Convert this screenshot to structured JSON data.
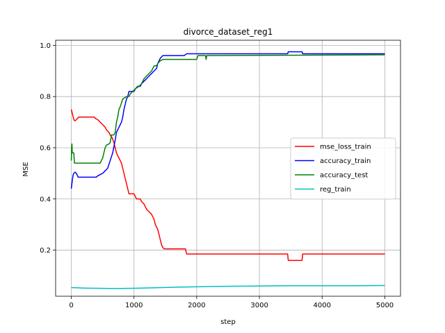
{
  "chart_data": {
    "type": "line",
    "title": "divorce_dataset_reg1",
    "xlabel": "step",
    "ylabel": "MSE",
    "xlim": [
      -250,
      5250
    ],
    "ylim": [
      0.02,
      1.02
    ],
    "xticks": [
      0,
      1000,
      2000,
      3000,
      4000,
      5000
    ],
    "yticks": [
      0.2,
      0.4,
      0.6,
      0.8,
      1.0
    ],
    "xtick_labels": [
      "0",
      "1000",
      "2000",
      "3000",
      "4000",
      "5000"
    ],
    "ytick_labels": [
      "0.2",
      "0.4",
      "0.6",
      "0.8",
      "1.0"
    ],
    "grid": true,
    "legend_position": "center-right",
    "series": [
      {
        "name": "mse_loss_train",
        "color": "#ff0000",
        "points": [
          [
            0,
            0.75
          ],
          [
            10,
            0.74
          ],
          [
            20,
            0.73
          ],
          [
            40,
            0.71
          ],
          [
            60,
            0.705
          ],
          [
            80,
            0.71
          ],
          [
            100,
            0.715
          ],
          [
            120,
            0.72
          ],
          [
            200,
            0.72
          ],
          [
            300,
            0.72
          ],
          [
            370,
            0.72
          ],
          [
            380,
            0.715
          ],
          [
            420,
            0.71
          ],
          [
            460,
            0.7
          ],
          [
            500,
            0.69
          ],
          [
            540,
            0.68
          ],
          [
            560,
            0.67
          ],
          [
            600,
            0.66
          ],
          [
            620,
            0.65
          ],
          [
            650,
            0.64
          ],
          [
            680,
            0.62
          ],
          [
            700,
            0.6
          ],
          [
            720,
            0.58
          ],
          [
            740,
            0.57
          ],
          [
            760,
            0.56
          ],
          [
            780,
            0.55
          ],
          [
            800,
            0.54
          ],
          [
            820,
            0.52
          ],
          [
            840,
            0.5
          ],
          [
            860,
            0.48
          ],
          [
            880,
            0.46
          ],
          [
            900,
            0.44
          ],
          [
            920,
            0.42
          ],
          [
            1000,
            0.42
          ],
          [
            1020,
            0.41
          ],
          [
            1040,
            0.4
          ],
          [
            1100,
            0.4
          ],
          [
            1120,
            0.39
          ],
          [
            1160,
            0.38
          ],
          [
            1200,
            0.36
          ],
          [
            1240,
            0.35
          ],
          [
            1280,
            0.34
          ],
          [
            1320,
            0.32
          ],
          [
            1340,
            0.3
          ],
          [
            1360,
            0.29
          ],
          [
            1380,
            0.28
          ],
          [
            1400,
            0.26
          ],
          [
            1410,
            0.25
          ],
          [
            1420,
            0.24
          ],
          [
            1430,
            0.23
          ],
          [
            1440,
            0.22
          ],
          [
            1460,
            0.21
          ],
          [
            1480,
            0.205
          ],
          [
            1820,
            0.205
          ],
          [
            1840,
            0.185
          ],
          [
            3450,
            0.185
          ],
          [
            3460,
            0.16
          ],
          [
            3680,
            0.16
          ],
          [
            3690,
            0.185
          ],
          [
            5000,
            0.185
          ]
        ]
      },
      {
        "name": "accuracy_train",
        "color": "#0000ff",
        "points": [
          [
            0,
            0.44
          ],
          [
            10,
            0.46
          ],
          [
            20,
            0.48
          ],
          [
            30,
            0.495
          ],
          [
            40,
            0.5
          ],
          [
            60,
            0.505
          ],
          [
            80,
            0.5
          ],
          [
            100,
            0.49
          ],
          [
            110,
            0.485
          ],
          [
            200,
            0.485
          ],
          [
            300,
            0.485
          ],
          [
            400,
            0.485
          ],
          [
            420,
            0.49
          ],
          [
            460,
            0.495
          ],
          [
            500,
            0.5
          ],
          [
            540,
            0.51
          ],
          [
            580,
            0.52
          ],
          [
            620,
            0.55
          ],
          [
            660,
            0.58
          ],
          [
            700,
            0.63
          ],
          [
            720,
            0.66
          ],
          [
            740,
            0.67
          ],
          [
            760,
            0.68
          ],
          [
            780,
            0.69
          ],
          [
            800,
            0.7
          ],
          [
            820,
            0.72
          ],
          [
            840,
            0.75
          ],
          [
            860,
            0.77
          ],
          [
            880,
            0.79
          ],
          [
            900,
            0.8
          ],
          [
            920,
            0.82
          ],
          [
            1000,
            0.82
          ],
          [
            1020,
            0.83
          ],
          [
            1060,
            0.84
          ],
          [
            1100,
            0.84
          ],
          [
            1120,
            0.85
          ],
          [
            1160,
            0.86
          ],
          [
            1200,
            0.87
          ],
          [
            1240,
            0.88
          ],
          [
            1280,
            0.89
          ],
          [
            1320,
            0.9
          ],
          [
            1360,
            0.91
          ],
          [
            1380,
            0.93
          ],
          [
            1400,
            0.94
          ],
          [
            1420,
            0.95
          ],
          [
            1460,
            0.96
          ],
          [
            1800,
            0.96
          ],
          [
            1840,
            0.967
          ],
          [
            3450,
            0.967
          ],
          [
            3460,
            0.975
          ],
          [
            3680,
            0.975
          ],
          [
            3690,
            0.967
          ],
          [
            5000,
            0.967
          ]
        ]
      },
      {
        "name": "accuracy_test",
        "color": "#008000",
        "points": [
          [
            0,
            0.55
          ],
          [
            5,
            0.6
          ],
          [
            10,
            0.615
          ],
          [
            15,
            0.58
          ],
          [
            20,
            0.58
          ],
          [
            40,
            0.58
          ],
          [
            50,
            0.54
          ],
          [
            100,
            0.54
          ],
          [
            200,
            0.54
          ],
          [
            300,
            0.54
          ],
          [
            400,
            0.54
          ],
          [
            460,
            0.54
          ],
          [
            480,
            0.55
          ],
          [
            500,
            0.56
          ],
          [
            520,
            0.58
          ],
          [
            540,
            0.6
          ],
          [
            560,
            0.61
          ],
          [
            600,
            0.615
          ],
          [
            620,
            0.62
          ],
          [
            640,
            0.65
          ],
          [
            680,
            0.65
          ],
          [
            700,
            0.66
          ],
          [
            720,
            0.7
          ],
          [
            740,
            0.72
          ],
          [
            760,
            0.75
          ],
          [
            780,
            0.76
          ],
          [
            820,
            0.79
          ],
          [
            880,
            0.8
          ],
          [
            920,
            0.8
          ],
          [
            940,
            0.81
          ],
          [
            980,
            0.82
          ],
          [
            1020,
            0.83
          ],
          [
            1080,
            0.84
          ],
          [
            1120,
            0.85
          ],
          [
            1160,
            0.87
          ],
          [
            1200,
            0.88
          ],
          [
            1240,
            0.89
          ],
          [
            1280,
            0.9
          ],
          [
            1320,
            0.92
          ],
          [
            1360,
            0.92
          ],
          [
            1380,
            0.93
          ],
          [
            1420,
            0.94
          ],
          [
            1460,
            0.945
          ],
          [
            2000,
            0.945
          ],
          [
            2020,
            0.96
          ],
          [
            2140,
            0.96
          ],
          [
            2150,
            0.945
          ],
          [
            2160,
            0.96
          ],
          [
            5000,
            0.963
          ]
        ]
      },
      {
        "name": "reg_train",
        "color": "#00bfbf",
        "points": [
          [
            0,
            0.054
          ],
          [
            200,
            0.052
          ],
          [
            400,
            0.051
          ],
          [
            700,
            0.05
          ],
          [
            1000,
            0.051
          ],
          [
            1300,
            0.053
          ],
          [
            1600,
            0.055
          ],
          [
            2000,
            0.057
          ],
          [
            2500,
            0.059
          ],
          [
            3000,
            0.06
          ],
          [
            3500,
            0.061
          ],
          [
            4000,
            0.061
          ],
          [
            4500,
            0.061
          ],
          [
            5000,
            0.062
          ]
        ]
      }
    ]
  }
}
